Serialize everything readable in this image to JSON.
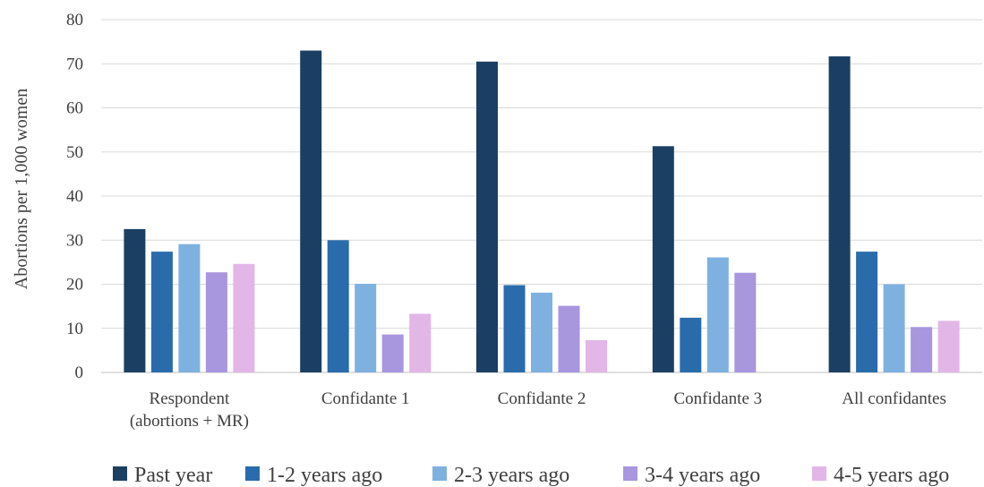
{
  "chart_data": {
    "type": "bar",
    "title": "",
    "xlabel": "",
    "ylabel": "Abortions per 1,000 women",
    "ylim": [
      0,
      80
    ],
    "yticks": [
      0,
      10,
      20,
      30,
      40,
      50,
      60,
      70,
      80
    ],
    "grid": true,
    "legend_position": "bottom",
    "categories": [
      [
        "Respondent",
        "(abortions + MR)"
      ],
      [
        "Confidante 1"
      ],
      [
        "Confidante 2"
      ],
      [
        "Confidante 3"
      ],
      [
        "All confidantes"
      ]
    ],
    "series": [
      {
        "name": "Past year",
        "color": "#1b3f63",
        "values": [
          32.5,
          73.0,
          70.5,
          51.3,
          71.7
        ]
      },
      {
        "name": "1-2 years ago",
        "color": "#2a6cab",
        "values": [
          27.4,
          30.0,
          19.8,
          12.4,
          27.4
        ]
      },
      {
        "name": "2-3 years ago",
        "color": "#7fb1e0",
        "values": [
          29.1,
          20.1,
          18.1,
          26.1,
          20.0
        ]
      },
      {
        "name": "3-4 years ago",
        "color": "#a896df",
        "values": [
          22.7,
          8.6,
          15.1,
          22.6,
          10.3
        ]
      },
      {
        "name": "4-5 years ago",
        "color": "#e2b6e6",
        "values": [
          24.6,
          13.3,
          7.3,
          0,
          11.7
        ]
      }
    ]
  }
}
